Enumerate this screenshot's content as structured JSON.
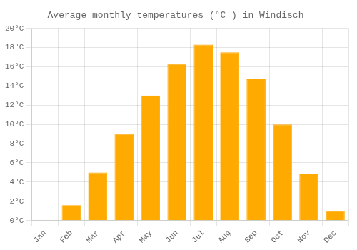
{
  "chart_data": {
    "type": "bar",
    "title": "Average monthly temperatures (°C ) in Windisch",
    "categories": [
      "Jan",
      "Feb",
      "Mar",
      "Apr",
      "May",
      "Jun",
      "Jul",
      "Aug",
      "Sep",
      "Oct",
      "Nov",
      "Dec"
    ],
    "values": [
      0.0,
      1.6,
      5.0,
      9.0,
      13.0,
      16.3,
      18.3,
      17.5,
      14.7,
      10.0,
      4.8,
      1.0
    ],
    "color": "#FFAA00",
    "ylim": [
      0,
      20
    ],
    "yticks": [
      {
        "value": 0,
        "label": "0°C"
      },
      {
        "value": 2,
        "label": "2°C"
      },
      {
        "value": 4,
        "label": "4°C"
      },
      {
        "value": 6,
        "label": "6°C"
      },
      {
        "value": 8,
        "label": "8°C"
      },
      {
        "value": 10,
        "label": "10°C"
      },
      {
        "value": 12,
        "label": "12°C"
      },
      {
        "value": 14,
        "label": "14°C"
      },
      {
        "value": 16,
        "label": "16°C"
      },
      {
        "value": 18,
        "label": "18°C"
      },
      {
        "value": 20,
        "label": "20°C"
      }
    ],
    "grid": true
  }
}
